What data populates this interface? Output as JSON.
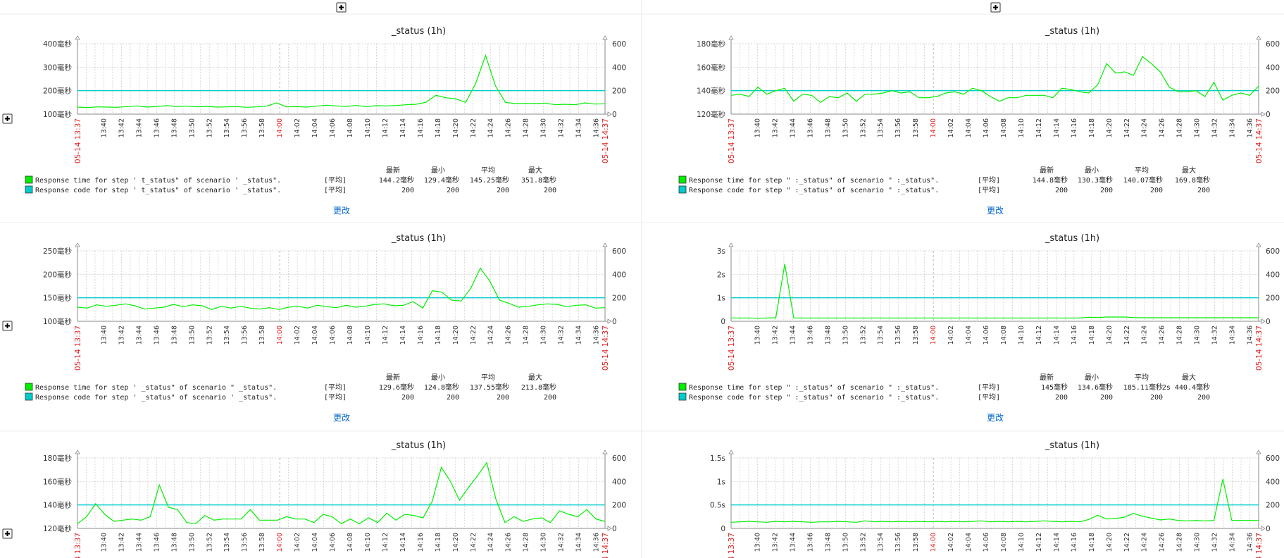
{
  "update_label": "更改",
  "legend_headers": [
    "最新",
    "最小",
    "平均",
    "最大"
  ],
  "avg_tag": "[平均]",
  "colors": {
    "series_response_time": "#00ee00",
    "series_response_code": "#00cccc",
    "red_text": "#e02020",
    "link": "#0066cc"
  },
  "time_ticks": [
    "13:40",
    "13:42",
    "13:44",
    "13:46",
    "13:48",
    "13:50",
    "13:52",
    "13:54",
    "13:56",
    "13:58",
    "14:00",
    "14:02",
    "14:04",
    "14:06",
    "14:08",
    "14:10",
    "14:12",
    "14:14",
    "14:16",
    "14:18",
    "14:20",
    "14:22",
    "14:24",
    "14:26",
    "14:28",
    "14:30",
    "14:32",
    "14:34",
    "14:36"
  ],
  "time_start_label": "05-14 13:37",
  "time_end_label": "05-14 14:37",
  "graphs": [
    {
      "title": "_status  (1h)",
      "left_ticks": [
        "400毫秒",
        "300毫秒",
        "200毫秒",
        "100毫秒"
      ],
      "right_ticks": [
        "600",
        "400",
        "200",
        "0"
      ],
      "legend": [
        {
          "label": "Response time for step '      t_status\" of scenario '        _status\".",
          "tag": "[平均]",
          "vals": [
            "144.2毫秒",
            "129.4毫秒",
            "145.25毫秒",
            "351.8毫秒"
          ]
        },
        {
          "label": "Response code for step '      t_status\" of scenario '        _status\".",
          "tag": "[平均]",
          "vals": [
            "200",
            "200",
            "200",
            "200"
          ]
        }
      ],
      "chart_data": {
        "type": "line",
        "ylim": [
          100,
          400
        ],
        "y2lim": [
          0,
          600
        ],
        "series": [
          {
            "name": "Response time",
            "values": [
              130,
              128,
              131,
              130,
              129,
              132,
              135,
              130,
              133,
              136,
              132,
              134,
              131,
              133,
              130,
              131,
              132,
              129,
              131,
              134,
              148,
              131,
              132,
              130,
              134,
              138,
              135,
              133,
              137,
              132,
              136,
              135,
              137,
              140,
              142,
              150,
              180,
              170,
              165,
              150,
              230,
              350,
              220,
              150,
              145,
              146,
              145,
              147,
              140,
              142,
              140,
              148,
              143,
              144
            ]
          },
          {
            "name": "Response code",
            "values": [
              200,
              200
            ]
          }
        ]
      }
    },
    {
      "title": "_status  (1h)",
      "left_ticks": [
        "180毫秒",
        "160毫秒",
        "140毫秒",
        "120毫秒"
      ],
      "right_ticks": [
        "600",
        "400",
        "200",
        "0"
      ],
      "legend": [
        {
          "label": "Response time for step \"       :_status\" of scenario \"        :_status\".",
          "tag": "[平均]",
          "vals": [
            "144.8毫秒",
            "130.3毫秒",
            "140.07毫秒",
            "169.8毫秒"
          ]
        },
        {
          "label": "Response code for step \"       :_status\" of scenario \"        :_status\".",
          "tag": "[平均]",
          "vals": [
            "200",
            "200",
            "200",
            "200"
          ]
        }
      ],
      "chart_data": {
        "type": "line",
        "ylim": [
          120,
          180
        ],
        "y2lim": [
          0,
          600
        ],
        "series": [
          {
            "name": "Response time",
            "values": [
              136,
              137,
              135,
              143,
              137,
              140,
              142,
              131,
              137,
              136,
              130,
              135,
              134,
              138,
              131,
              137,
              137,
              138,
              140,
              138,
              139,
              134,
              134,
              135,
              138,
              139,
              137,
              142,
              140,
              135,
              131,
              134,
              134,
              136,
              136,
              136,
              134,
              142,
              141,
              139,
              138,
              145,
              163,
              155,
              156,
              153,
              169,
              163,
              156,
              143,
              139,
              139,
              140,
              135,
              147,
              132,
              136,
              138,
              136,
              144
            ]
          },
          {
            "name": "Response code",
            "values": [
              200,
              200
            ]
          }
        ]
      }
    },
    {
      "title": "_status  (1h)",
      "left_ticks": [
        "250毫秒",
        "200毫秒",
        "150毫秒",
        "100毫秒"
      ],
      "right_ticks": [
        "600",
        "400",
        "200",
        "0"
      ],
      "legend": [
        {
          "label": "Response time for step '         _status\" of scenario \"        _status\".",
          "tag": "[平均]",
          "vals": [
            "129.6毫秒",
            "124.8毫秒",
            "137.55毫秒",
            "213.8毫秒"
          ]
        },
        {
          "label": "Response code for step '         _status\" of scenario '        _status\".",
          "tag": "[平均]",
          "vals": [
            "200",
            "200",
            "200",
            "200"
          ]
        }
      ],
      "chart_data": {
        "type": "line",
        "ylim": [
          100,
          250
        ],
        "y2lim": [
          0,
          600
        ],
        "series": [
          {
            "name": "Response time",
            "values": [
              130,
              128,
              135,
              132,
              134,
              137,
              133,
              126,
              128,
              130,
              136,
              131,
              135,
              133,
              125,
              132,
              128,
              132,
              128,
              126,
              129,
              125,
              130,
              132,
              128,
              134,
              131,
              129,
              134,
              130,
              132,
              136,
              137,
              133,
              134,
              142,
              128,
              165,
              162,
              145,
              143,
              170,
              213,
              185,
              145,
              138,
              130,
              132,
              135,
              137,
              136,
              131,
              134,
              135,
              128,
              129
            ]
          },
          {
            "name": "Response code",
            "values": [
              200,
              200
            ]
          }
        ]
      }
    },
    {
      "title": "_status  (1h)",
      "left_ticks": [
        "3s",
        "2s",
        "1s",
        "0"
      ],
      "right_ticks": [
        "600",
        "400",
        "200",
        "0"
      ],
      "legend": [
        {
          "label": "Response time for step \"       :_status\" of scenario \"        :_status\".",
          "tag": "[平均]",
          "vals": [
            "145毫秒",
            "134.6毫秒",
            "185.11毫秒",
            "2s 440.4毫秒"
          ]
        },
        {
          "label": "Response code for step \"       :_status\" of scenario \"        :_status\".",
          "tag": "[平均]",
          "vals": [
            "200",
            "200",
            "200",
            "200"
          ]
        }
      ],
      "chart_data": {
        "type": "line",
        "ylim": [
          0,
          3
        ],
        "y2lim": [
          0,
          600
        ],
        "series": [
          {
            "name": "Response time",
            "values": [
              0.14,
              0.14,
              0.14,
              0.13,
              0.14,
              0.15,
              2.44,
              0.14,
              0.14,
              0.14,
              0.14,
              0.14,
              0.14,
              0.14,
              0.14,
              0.14,
              0.14,
              0.14,
              0.14,
              0.14,
              0.14,
              0.14,
              0.14,
              0.14,
              0.14,
              0.14,
              0.14,
              0.14,
              0.14,
              0.14,
              0.14,
              0.14,
              0.14,
              0.14,
              0.14,
              0.14,
              0.14,
              0.14,
              0.14,
              0.14,
              0.17,
              0.16,
              0.18,
              0.18,
              0.18,
              0.16,
              0.15,
              0.15,
              0.15,
              0.15,
              0.15,
              0.15,
              0.15,
              0.15,
              0.15,
              0.15,
              0.15,
              0.15,
              0.15,
              0.15
            ]
          },
          {
            "name": "Response code",
            "values": [
              200,
              200
            ]
          }
        ]
      }
    },
    {
      "title": "_status  (1h)",
      "left_ticks": [
        "180毫秒",
        "160毫秒",
        "140毫秒",
        "120毫秒"
      ],
      "right_ticks": [
        "600",
        "400",
        "200",
        "0"
      ],
      "legend": [],
      "chart_data": {
        "type": "line",
        "ylim": [
          120,
          180
        ],
        "y2lim": [
          0,
          600
        ],
        "series": [
          {
            "name": "Response time",
            "values": [
              124,
              130,
              141,
              132,
              126,
              127,
              128,
              127,
              130,
              157,
              138,
              136,
              125,
              124,
              131,
              127,
              128,
              128,
              128,
              136,
              127,
              127,
              127,
              130,
              128,
              128,
              125,
              132,
              130,
              124,
              128,
              124,
              129,
              125,
              133,
              127,
              132,
              131,
              129,
              143,
              172,
              160,
              144,
              155,
              165,
              176,
              145,
              125,
              130,
              126,
              128,
              129,
              125,
              135,
              132,
              130,
              136,
              128,
              126
            ]
          },
          {
            "name": "Response code",
            "values": [
              200,
              200
            ]
          }
        ]
      }
    },
    {
      "title": "_status  (1h)",
      "left_ticks": [
        "1.5s",
        "1s",
        "0.5s",
        "0"
      ],
      "right_ticks": [
        "600",
        "400",
        "200",
        "0"
      ],
      "legend": [],
      "chart_data": {
        "type": "line",
        "ylim": [
          0,
          1.5
        ],
        "y2lim": [
          0,
          600
        ],
        "series": [
          {
            "name": "Response time",
            "values": [
              0.13,
              0.14,
              0.15,
              0.14,
              0.13,
              0.15,
              0.14,
              0.15,
              0.14,
              0.13,
              0.14,
              0.14,
              0.15,
              0.14,
              0.13,
              0.16,
              0.14,
              0.15,
              0.14,
              0.15,
              0.14,
              0.15,
              0.14,
              0.15,
              0.14,
              0.15,
              0.14,
              0.15,
              0.16,
              0.14,
              0.15,
              0.14,
              0.15,
              0.14,
              0.15,
              0.16,
              0.15,
              0.14,
              0.15,
              0.14,
              0.19,
              0.28,
              0.2,
              0.21,
              0.24,
              0.32,
              0.26,
              0.22,
              0.18,
              0.2,
              0.17,
              0.16,
              0.17,
              0.16,
              0.17,
              1.05,
              0.17,
              0.17,
              0.17,
              0.17
            ]
          },
          {
            "name": "Response code",
            "values": [
              200,
              200
            ]
          }
        ]
      }
    }
  ]
}
